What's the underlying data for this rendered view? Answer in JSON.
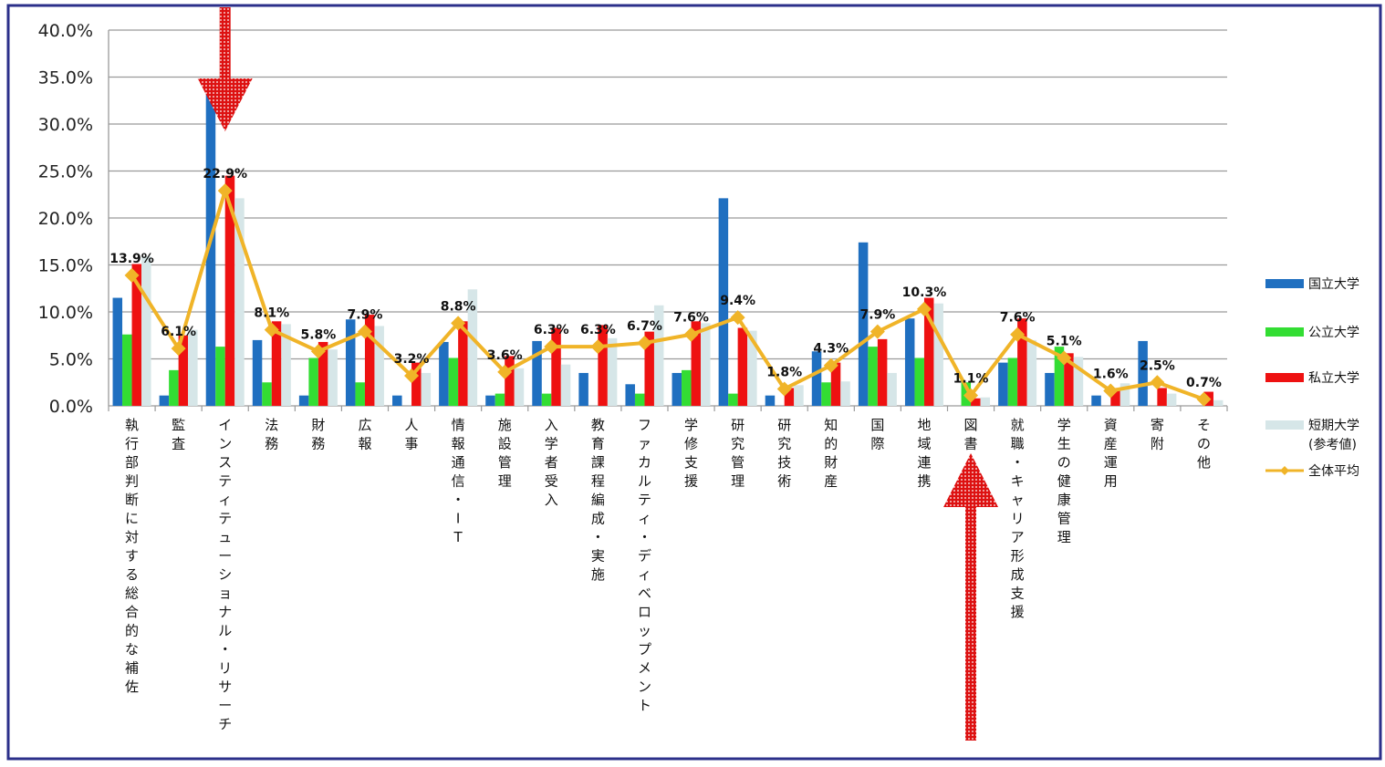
{
  "chart_data": {
    "type": "bar",
    "categories": [
      "執行部判断に対する総合的な補佐",
      "監査",
      "インスティテューショナル・リサーチ",
      "法務",
      "財務",
      "広報",
      "人事",
      "情報通信・IT",
      "施設管理",
      "入学者受入",
      "教育課程編成・実施",
      "ファカルティ・ディベロップメント",
      "学修支援",
      "研究管理",
      "研究技術",
      "知的財産",
      "国際",
      "地域連携",
      "図書",
      "就職・キャリア形成支援",
      "学生の健康管理",
      "資産運用",
      "寄附",
      "その他"
    ],
    "series": [
      {
        "name": "国立大学",
        "type": "bar",
        "color": "#1f6fc0",
        "values": [
          11.5,
          1.1,
          33.7,
          7.0,
          1.1,
          9.2,
          1.1,
          6.8,
          1.1,
          6.9,
          3.5,
          2.3,
          3.5,
          22.1,
          1.1,
          5.8,
          17.4,
          9.3,
          0,
          4.6,
          3.5,
          1.1,
          6.9,
          0
        ]
      },
      {
        "name": "公立大学",
        "type": "bar",
        "color": "#33dd33",
        "values": [
          7.6,
          3.8,
          6.3,
          2.5,
          5.1,
          2.5,
          0,
          5.1,
          1.3,
          1.3,
          0,
          1.3,
          3.8,
          1.3,
          0,
          2.5,
          6.3,
          5.1,
          2.5,
          5.1,
          6.3,
          0,
          0,
          0
        ]
      },
      {
        "name": "私立大学",
        "type": "bar",
        "color": "#ee1111",
        "values": [
          15.1,
          7.5,
          24.5,
          9.0,
          6.8,
          9.7,
          4.6,
          9.0,
          5.3,
          8.3,
          8.6,
          7.9,
          9.0,
          8.3,
          1.9,
          4.6,
          7.1,
          11.5,
          0.8,
          9.3,
          5.6,
          1.9,
          1.9,
          1.5
        ]
      },
      {
        "name": "短期大学\n(参考値)",
        "type": "bar",
        "color": "#d6e6e8",
        "values": [
          15.9,
          8.1,
          22.1,
          8.7,
          6.0,
          8.5,
          3.5,
          12.4,
          4.0,
          4.4,
          7.2,
          10.7,
          8.8,
          8.0,
          2.2,
          2.6,
          3.5,
          10.9,
          0.9,
          7.0,
          5.2,
          2.4,
          1.3,
          0.6
        ]
      },
      {
        "name": "全体平均",
        "type": "line",
        "color": "#f0b428",
        "values": [
          13.9,
          6.1,
          22.9,
          8.1,
          5.8,
          7.9,
          3.2,
          8.8,
          3.6,
          6.3,
          6.3,
          6.7,
          7.6,
          9.4,
          1.8,
          4.3,
          7.9,
          10.3,
          1.1,
          7.6,
          5.1,
          1.6,
          2.5,
          0.7
        ],
        "labels": [
          "13.9%",
          "6.1%",
          "22.9%",
          "8.1%",
          "5.8%",
          "7.9%",
          "3.2%",
          "8.8%",
          "3.6%",
          "6.3%",
          "6.3%",
          "6.7%",
          "7.6%",
          "9.4%",
          "1.8%",
          "4.3%",
          "7.9%",
          "10.3%",
          "1.1%",
          "7.6%",
          "5.1%",
          "1.6%",
          "2.5%",
          "0.7%"
        ]
      }
    ],
    "yticks": [
      "40.0%",
      "35.0%",
      "30.0%",
      "25.0%",
      "20.0%",
      "15.0%",
      "10.0%",
      "5.0%",
      "0.0%"
    ],
    "ylim": [
      0,
      40
    ],
    "grid": true,
    "legend_position": "right",
    "title": "",
    "xlabel": "",
    "ylabel": "",
    "annotations": [
      {
        "shape": "arrow-down",
        "color": "#dd1111",
        "target_category": "インスティテューショナル・リサーチ"
      },
      {
        "shape": "arrow-up",
        "color": "#dd1111",
        "target_category": "図書"
      }
    ],
    "frame_color": "#2b2f8a"
  }
}
